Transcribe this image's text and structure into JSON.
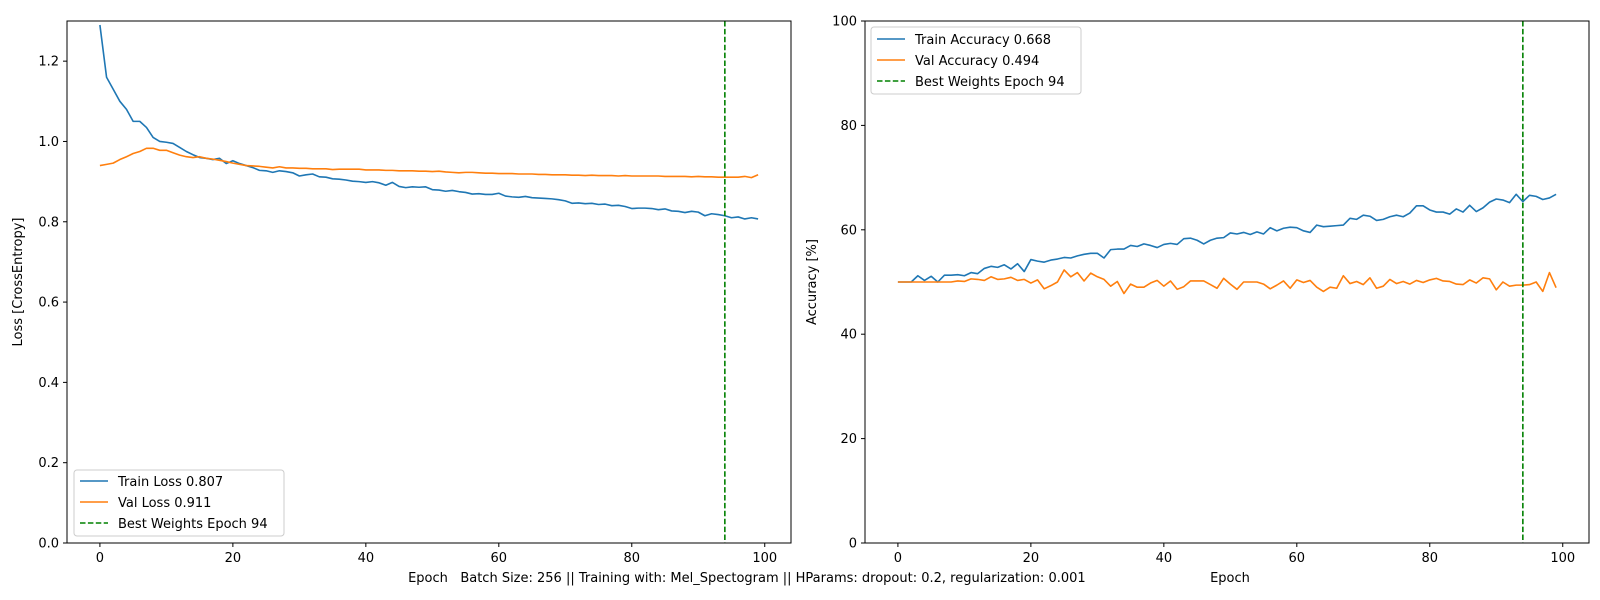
{
  "figure_caption": "Batch Size: 256 || Training with: Mel_Spectogram || HParams: dropout: 0.2, regularization: 0.001",
  "colors": {
    "train": "#1f77b4",
    "val": "#ff7f0e",
    "best": "#008000"
  },
  "chart_data": [
    {
      "type": "line",
      "xlabel": "Epoch",
      "ylabel": "Loss [CrossEntropy]",
      "xlim": [
        -4.95,
        103.95
      ],
      "ylim": [
        0,
        1.3
      ],
      "xticks": [
        0,
        20,
        40,
        60,
        80,
        100
      ],
      "xtick_labels": [
        "0",
        "20",
        "40",
        "60",
        "80",
        "100"
      ],
      "yticks": [
        0,
        0.2,
        0.4,
        0.6,
        0.8,
        1.0,
        1.2
      ],
      "ytick_labels": [
        "0.0",
        "0.2",
        "0.4",
        "0.6",
        "0.8",
        "1.0",
        "1.2"
      ],
      "grid": false,
      "legend_position": "lower-left",
      "best_epoch": 94,
      "series": [
        {
          "name": "Train Loss 0.807",
          "color": "#1f77b4",
          "style": "solid",
          "x": [
            0,
            1,
            2,
            3,
            4,
            5,
            6,
            7,
            8,
            9,
            10,
            11,
            12,
            13,
            14,
            15,
            16,
            17,
            18,
            19,
            20,
            21,
            22,
            23,
            24,
            25,
            26,
            27,
            28,
            29,
            30,
            31,
            32,
            33,
            34,
            35,
            36,
            37,
            38,
            39,
            40,
            41,
            42,
            43,
            44,
            45,
            46,
            47,
            48,
            49,
            50,
            51,
            52,
            53,
            54,
            55,
            56,
            57,
            58,
            59,
            60,
            61,
            62,
            63,
            64,
            65,
            66,
            67,
            68,
            69,
            70,
            71,
            72,
            73,
            74,
            75,
            76,
            77,
            78,
            79,
            80,
            81,
            82,
            83,
            84,
            85,
            86,
            87,
            88,
            89,
            90,
            91,
            92,
            93,
            94,
            95,
            96,
            97,
            98,
            99
          ],
          "values": [
            1.29,
            1.16,
            1.13,
            1.1,
            1.08,
            1.05,
            1.05,
            1.035,
            1.01,
            1.0,
            0.998,
            0.995,
            0.985,
            0.975,
            0.967,
            0.96,
            0.958,
            0.955,
            0.958,
            0.945,
            0.952,
            0.945,
            0.94,
            0.935,
            0.928,
            0.927,
            0.923,
            0.927,
            0.925,
            0.922,
            0.914,
            0.917,
            0.919,
            0.912,
            0.911,
            0.907,
            0.906,
            0.904,
            0.901,
            0.9,
            0.898,
            0.9,
            0.897,
            0.891,
            0.898,
            0.888,
            0.885,
            0.887,
            0.886,
            0.887,
            0.88,
            0.879,
            0.876,
            0.878,
            0.875,
            0.873,
            0.869,
            0.87,
            0.868,
            0.868,
            0.871,
            0.864,
            0.862,
            0.861,
            0.863,
            0.86,
            0.859,
            0.858,
            0.857,
            0.855,
            0.852,
            0.846,
            0.847,
            0.845,
            0.846,
            0.843,
            0.844,
            0.84,
            0.841,
            0.838,
            0.833,
            0.834,
            0.834,
            0.833,
            0.83,
            0.832,
            0.827,
            0.826,
            0.823,
            0.826,
            0.824,
            0.815,
            0.82,
            0.818,
            0.815,
            0.81,
            0.812,
            0.807,
            0.81,
            0.807
          ]
        },
        {
          "name": "Val Loss 0.911",
          "color": "#ff7f0e",
          "style": "solid",
          "x": [
            0,
            1,
            2,
            3,
            4,
            5,
            6,
            7,
            8,
            9,
            10,
            11,
            12,
            13,
            14,
            15,
            16,
            17,
            18,
            19,
            20,
            21,
            22,
            23,
            24,
            25,
            26,
            27,
            28,
            29,
            30,
            31,
            32,
            33,
            34,
            35,
            36,
            37,
            38,
            39,
            40,
            41,
            42,
            43,
            44,
            45,
            46,
            47,
            48,
            49,
            50,
            51,
            52,
            53,
            54,
            55,
            56,
            57,
            58,
            59,
            60,
            61,
            62,
            63,
            64,
            65,
            66,
            67,
            68,
            69,
            70,
            71,
            72,
            73,
            74,
            75,
            76,
            77,
            78,
            79,
            80,
            81,
            82,
            83,
            84,
            85,
            86,
            87,
            88,
            89,
            90,
            91,
            92,
            93,
            94,
            95,
            96,
            97,
            98,
            99
          ],
          "values": [
            0.94,
            0.943,
            0.946,
            0.955,
            0.962,
            0.97,
            0.975,
            0.983,
            0.983,
            0.978,
            0.978,
            0.972,
            0.966,
            0.962,
            0.96,
            0.962,
            0.958,
            0.956,
            0.953,
            0.95,
            0.946,
            0.943,
            0.94,
            0.939,
            0.938,
            0.936,
            0.934,
            0.937,
            0.934,
            0.934,
            0.933,
            0.933,
            0.932,
            0.932,
            0.932,
            0.93,
            0.931,
            0.931,
            0.931,
            0.931,
            0.929,
            0.929,
            0.929,
            0.928,
            0.928,
            0.927,
            0.927,
            0.927,
            0.926,
            0.926,
            0.925,
            0.926,
            0.924,
            0.923,
            0.922,
            0.923,
            0.923,
            0.922,
            0.921,
            0.921,
            0.92,
            0.92,
            0.92,
            0.919,
            0.919,
            0.919,
            0.918,
            0.918,
            0.917,
            0.917,
            0.917,
            0.916,
            0.916,
            0.915,
            0.916,
            0.915,
            0.915,
            0.915,
            0.914,
            0.915,
            0.914,
            0.914,
            0.914,
            0.914,
            0.914,
            0.913,
            0.913,
            0.913,
            0.913,
            0.912,
            0.913,
            0.912,
            0.912,
            0.911,
            0.911,
            0.911,
            0.911,
            0.913,
            0.91,
            0.917
          ]
        }
      ]
    },
    {
      "type": "line",
      "xlabel": "Epoch",
      "ylabel": "Accuracy [%]",
      "xlim": [
        -4.95,
        103.95
      ],
      "ylim": [
        0,
        100
      ],
      "xticks": [
        0,
        20,
        40,
        60,
        80,
        100
      ],
      "xtick_labels": [
        "0",
        "20",
        "40",
        "60",
        "80",
        "100"
      ],
      "yticks": [
        0,
        20,
        40,
        60,
        80,
        100
      ],
      "ytick_labels": [
        "0",
        "20",
        "40",
        "60",
        "80",
        "100"
      ],
      "grid": false,
      "legend_position": "upper-left",
      "best_epoch": 94,
      "series": [
        {
          "name": "Train Accuracy 0.668",
          "color": "#1f77b4",
          "style": "solid",
          "x": [
            0,
            1,
            2,
            3,
            4,
            5,
            6,
            7,
            8,
            9,
            10,
            11,
            12,
            13,
            14,
            15,
            16,
            17,
            18,
            19,
            20,
            21,
            22,
            23,
            24,
            25,
            26,
            27,
            28,
            29,
            30,
            31,
            32,
            33,
            34,
            35,
            36,
            37,
            38,
            39,
            40,
            41,
            42,
            43,
            44,
            45,
            46,
            47,
            48,
            49,
            50,
            51,
            52,
            53,
            54,
            55,
            56,
            57,
            58,
            59,
            60,
            61,
            62,
            63,
            64,
            65,
            66,
            67,
            68,
            69,
            70,
            71,
            72,
            73,
            74,
            75,
            76,
            77,
            78,
            79,
            80,
            81,
            82,
            83,
            84,
            85,
            86,
            87,
            88,
            89,
            90,
            91,
            92,
            93,
            94,
            95,
            96,
            97,
            98,
            99
          ],
          "values": [
            50,
            50,
            50,
            51.2,
            50.3,
            51.1,
            50,
            51.3,
            51.3,
            51.4,
            51.2,
            51.8,
            51.6,
            52.6,
            53,
            52.8,
            53.3,
            52.5,
            53.5,
            52,
            54.3,
            54,
            53.8,
            54.2,
            54.4,
            54.7,
            54.6,
            55,
            55.3,
            55.5,
            55.5,
            54.6,
            56.2,
            56.3,
            56.3,
            57,
            56.8,
            57.3,
            57,
            56.6,
            57.2,
            57.4,
            57.2,
            58.3,
            58.4,
            58,
            57.3,
            58,
            58.4,
            58.5,
            59.4,
            59.2,
            59.5,
            59.1,
            59.6,
            59.2,
            60.4,
            59.8,
            60.3,
            60.5,
            60.4,
            59.8,
            59.5,
            60.9,
            60.6,
            60.7,
            60.8,
            60.9,
            62.2,
            62,
            62.8,
            62.6,
            61.8,
            62,
            62.5,
            62.8,
            62.5,
            63.2,
            64.6,
            64.6,
            63.8,
            63.4,
            63.4,
            63,
            64,
            63.4,
            64.7,
            63.5,
            64.2,
            65.3,
            65.9,
            65.7,
            65.2,
            66.8,
            65.4,
            66.6,
            66.4,
            65.8,
            66.1,
            66.8
          ]
        },
        {
          "name": "Val Accuracy 0.494",
          "color": "#ff7f0e",
          "style": "solid",
          "x": [
            0,
            1,
            2,
            3,
            4,
            5,
            6,
            7,
            8,
            9,
            10,
            11,
            12,
            13,
            14,
            15,
            16,
            17,
            18,
            19,
            20,
            21,
            22,
            23,
            24,
            25,
            26,
            27,
            28,
            29,
            30,
            31,
            32,
            33,
            34,
            35,
            36,
            37,
            38,
            39,
            40,
            41,
            42,
            43,
            44,
            45,
            46,
            47,
            48,
            49,
            50,
            51,
            52,
            53,
            54,
            55,
            56,
            57,
            58,
            59,
            60,
            61,
            62,
            63,
            64,
            65,
            66,
            67,
            68,
            69,
            70,
            71,
            72,
            73,
            74,
            75,
            76,
            77,
            78,
            79,
            80,
            81,
            82,
            83,
            84,
            85,
            86,
            87,
            88,
            89,
            90,
            91,
            92,
            93,
            94,
            95,
            96,
            97,
            98,
            99
          ],
          "values": [
            50,
            50,
            50,
            50,
            50,
            50,
            50,
            50,
            50,
            50.2,
            50.1,
            50.6,
            50.5,
            50.3,
            51,
            50.5,
            50.6,
            50.9,
            50.3,
            50.5,
            49.8,
            50.4,
            48.7,
            49.3,
            50,
            52.3,
            51,
            51.8,
            50.2,
            51.7,
            51,
            50.5,
            49.2,
            50.1,
            47.8,
            49.6,
            49,
            49,
            49.8,
            50.3,
            49.2,
            50.2,
            48.6,
            49.1,
            50.2,
            50.2,
            50.2,
            49.5,
            48.8,
            50.7,
            49.6,
            48.6,
            50,
            50,
            50,
            49.6,
            48.7,
            49.4,
            50.2,
            48.8,
            50.4,
            49.9,
            50.3,
            49,
            48.2,
            49,
            48.8,
            51.2,
            49.7,
            50.1,
            49.5,
            50.8,
            48.8,
            49.2,
            50.5,
            49.7,
            50.1,
            49.6,
            50.3,
            49.9,
            50.4,
            50.7,
            50.2,
            50.1,
            49.6,
            49.5,
            50.4,
            49.8,
            50.8,
            50.6,
            48.5,
            50,
            49.2,
            49.4,
            49.4,
            49.5,
            50,
            48.2,
            51.8,
            48.9
          ]
        }
      ]
    }
  ]
}
